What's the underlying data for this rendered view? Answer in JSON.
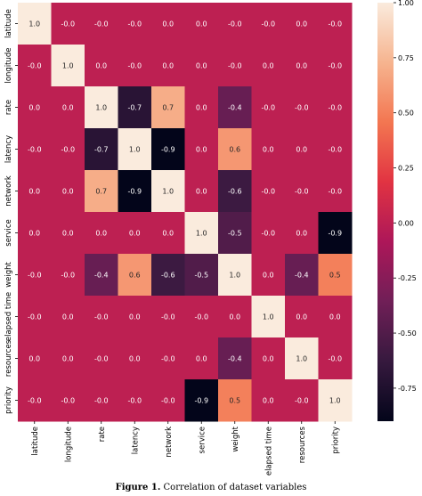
{
  "caption": {
    "figure_label": "Figure 1.",
    "text": "Correlation of dataset variables"
  },
  "chart_data": {
    "type": "heatmap",
    "variables": [
      "latitude",
      "longitude",
      "rate",
      "latency",
      "network",
      "service",
      "weight",
      "elapsed time",
      "resources",
      "priority"
    ],
    "matrix": [
      [
        "1.0",
        "-0.0",
        "-0.0",
        "-0.0",
        "0.0",
        "0.0",
        "-0.0",
        "-0.0",
        "0.0",
        "-0.0"
      ],
      [
        "-0.0",
        "1.0",
        "0.0",
        "-0.0",
        "0.0",
        "0.0",
        "-0.0",
        "0.0",
        "0.0",
        "-0.0"
      ],
      [
        "0.0",
        "0.0",
        "1.0",
        "-0.7",
        "0.7",
        "0.0",
        "-0.4",
        "-0.0",
        "-0.0",
        "-0.0"
      ],
      [
        "-0.0",
        "-0.0",
        "-0.7",
        "1.0",
        "-0.9",
        "0.0",
        "0.6",
        "0.0",
        "0.0",
        "-0.0"
      ],
      [
        "0.0",
        "0.0",
        "0.7",
        "-0.9",
        "1.0",
        "0.0",
        "-0.6",
        "-0.0",
        "-0.0",
        "-0.0"
      ],
      [
        "0.0",
        "0.0",
        "0.0",
        "0.0",
        "0.0",
        "1.0",
        "-0.5",
        "-0.0",
        "0.0",
        "-0.9"
      ],
      [
        "-0.0",
        "-0.0",
        "-0.4",
        "0.6",
        "-0.6",
        "-0.5",
        "1.0",
        "0.0",
        "-0.4",
        "0.5"
      ],
      [
        "-0.0",
        "0.0",
        "-0.0",
        "0.0",
        "-0.0",
        "-0.0",
        "0.0",
        "1.0",
        "0.0",
        "0.0"
      ],
      [
        "0.0",
        "0.0",
        "-0.0",
        "0.0",
        "-0.0",
        "0.0",
        "-0.4",
        "0.0",
        "1.0",
        "-0.0"
      ],
      [
        "-0.0",
        "-0.0",
        "-0.0",
        "-0.0",
        "-0.0",
        "-0.9",
        "0.5",
        "0.0",
        "-0.0",
        "1.0"
      ]
    ],
    "colorbar": {
      "range": [
        -0.9,
        1.0
      ],
      "ticks": [
        "1.00",
        "0.75",
        "0.50",
        "0.25",
        "0.00",
        "-0.25",
        "-0.50",
        "-0.75"
      ],
      "colormap": "rocket",
      "colormap_stops": [
        "#03051a",
        "#36193e",
        "#701f57",
        "#ad1759",
        "#e13342",
        "#f37651",
        "#f6b48f",
        "#faebdd"
      ]
    },
    "title": "",
    "xlabel": "",
    "ylabel": ""
  }
}
